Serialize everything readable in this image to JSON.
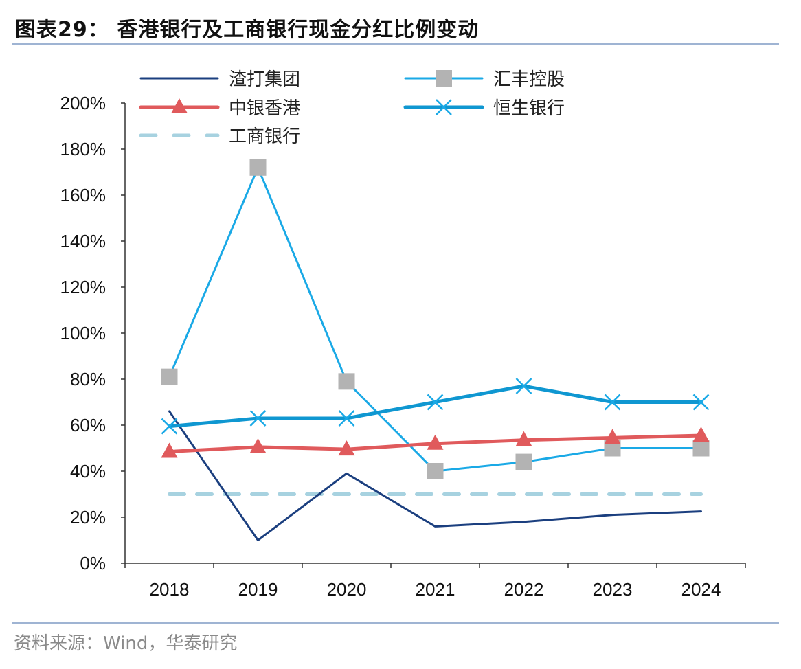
{
  "title": "图表29： 香港银行及工商银行现金分红比例变动",
  "source": "资料来源：Wind，华泰研究",
  "chart_data": {
    "type": "line",
    "title": "香港银行及工商银行现金分红比例变动",
    "xlabel": "",
    "ylabel": "",
    "x": [
      "2018",
      "2019",
      "2020",
      "2021",
      "2022",
      "2023",
      "2024"
    ],
    "ylim": [
      0,
      200
    ],
    "yticks": [
      0,
      20,
      40,
      60,
      80,
      100,
      120,
      140,
      160,
      180,
      200
    ],
    "ytick_labels": [
      "0%",
      "20%",
      "40%",
      "60%",
      "80%",
      "100%",
      "120%",
      "140%",
      "160%",
      "180%",
      "200%"
    ],
    "grid": false,
    "legend_position": "top",
    "series": [
      {
        "name": "渣打集团",
        "color": "#1b3f7f",
        "marker": "none",
        "style": "solid",
        "width": "thin",
        "values": [
          66,
          10,
          39,
          16,
          18,
          21,
          22.5
        ]
      },
      {
        "name": "汇丰控股",
        "color": "#1aa9e6",
        "marker": "square",
        "marker_color": "#b3b3b3",
        "style": "solid",
        "width": "thin",
        "values": [
          81,
          172,
          79,
          40,
          44,
          50,
          50
        ]
      },
      {
        "name": "中银香港",
        "color": "#e05a5c",
        "marker": "triangle",
        "marker_color": "#e05a5c",
        "style": "solid",
        "width": "thick",
        "values": [
          48.5,
          50.5,
          49.5,
          52,
          53.5,
          54.5,
          55.5
        ]
      },
      {
        "name": "恒生银行",
        "color": "#0f97d1",
        "marker": "x",
        "marker_color": "#1aa9e6",
        "style": "solid",
        "width": "thick",
        "values": [
          59.5,
          63,
          63,
          70,
          77,
          70,
          70
        ]
      },
      {
        "name": "工商银行",
        "color": "#a7d2e0",
        "marker": "none",
        "style": "dashed",
        "width": "thick",
        "values": [
          30,
          30,
          30,
          30,
          30,
          30,
          30
        ]
      }
    ]
  }
}
